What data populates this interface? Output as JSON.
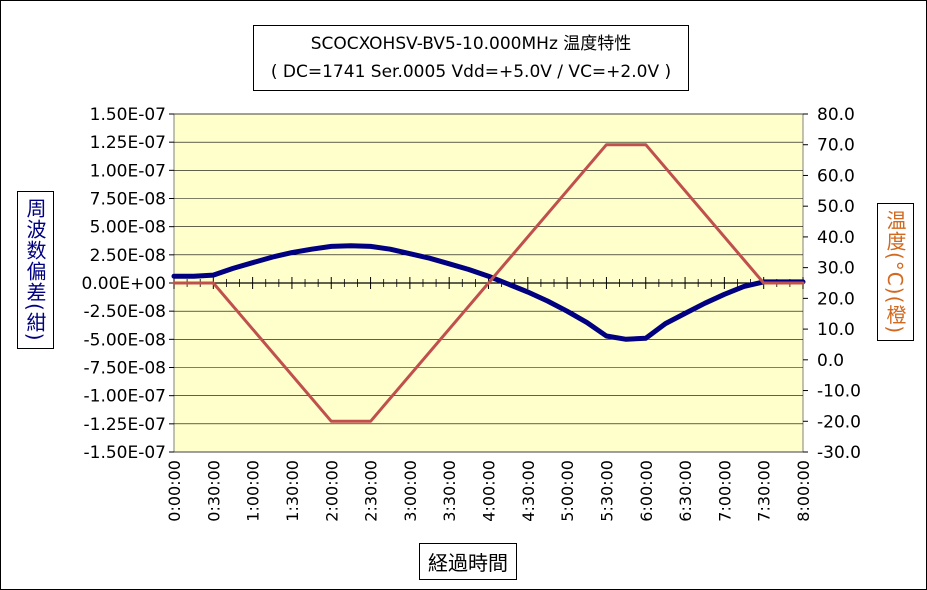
{
  "chart_data": {
    "type": "line",
    "title": "SCOCXOHSV-BV5-10.000MHz  温度特性",
    "subtitle": "( DC=1741  Ser.0005  Vdd=+5.0V / VC=+2.0V )",
    "xlabel": "経過時間",
    "ylabel_left": "周波数偏差(紺)",
    "ylabel_right": "温度(°C)(橙)",
    "x_ticks": [
      "0:00:00",
      "0:30:00",
      "1:00:00",
      "1:30:00",
      "2:00:00",
      "2:30:00",
      "3:00:00",
      "3:30:00",
      "4:00:00",
      "4:30:00",
      "5:00:00",
      "5:30:00",
      "6:00:00",
      "6:30:00",
      "7:00:00",
      "7:30:00",
      "8:00:00"
    ],
    "y_left_ticks": [
      "1.50E-07",
      "1.25E-07",
      "1.00E-07",
      "7.50E-08",
      "5.00E-08",
      "2.50E-08",
      "0.00E+00",
      "-2.50E-08",
      "-5.00E-08",
      "-7.50E-08",
      "-1.00E-07",
      "-1.25E-07",
      "-1.50E-07"
    ],
    "y_right_ticks": [
      "80.0",
      "70.0",
      "60.0",
      "50.0",
      "40.0",
      "30.0",
      "20.0",
      "10.0",
      "0.0",
      "-10.0",
      "-20.0",
      "-30.0"
    ],
    "x_range_hours": [
      0,
      8
    ],
    "y_left_range": [
      -1.5e-07,
      1.5e-07
    ],
    "y_right_range": [
      -30,
      80
    ],
    "grid": true,
    "series": [
      {
        "name": "周波数偏差",
        "axis": "left",
        "color": "#000080",
        "x": [
          0,
          0.25,
          0.5,
          0.75,
          1.0,
          1.25,
          1.5,
          1.75,
          2.0,
          2.25,
          2.5,
          2.75,
          3.0,
          3.25,
          3.5,
          3.75,
          4.0,
          4.25,
          4.5,
          4.75,
          5.0,
          5.25,
          5.5,
          5.75,
          6.0,
          6.25,
          6.5,
          6.75,
          7.0,
          7.25,
          7.5,
          7.75,
          8.0
        ],
        "y": [
          6e-09,
          6e-09,
          7e-09,
          1.3e-08,
          1.8e-08,
          2.3e-08,
          2.7e-08,
          3e-08,
          3.25e-08,
          3.3e-08,
          3.25e-08,
          3e-08,
          2.6e-08,
          2.2e-08,
          1.7e-08,
          1.2e-08,
          6e-09,
          -1e-09,
          -8e-09,
          -1.6e-08,
          -2.5e-08,
          -3.5e-08,
          -4.7e-08,
          -5e-08,
          -4.9e-08,
          -3.6e-08,
          -2.7e-08,
          -1.8e-08,
          -1e-08,
          -3e-09,
          1e-09,
          1e-09,
          1e-09
        ]
      },
      {
        "name": "温度",
        "axis": "right",
        "color": "#c0504d",
        "x": [
          0,
          0.5,
          2.0,
          2.5,
          5.5,
          6.0,
          7.5,
          8.0
        ],
        "y": [
          25,
          25,
          -20,
          -20,
          70,
          70,
          25,
          25
        ]
      }
    ]
  }
}
